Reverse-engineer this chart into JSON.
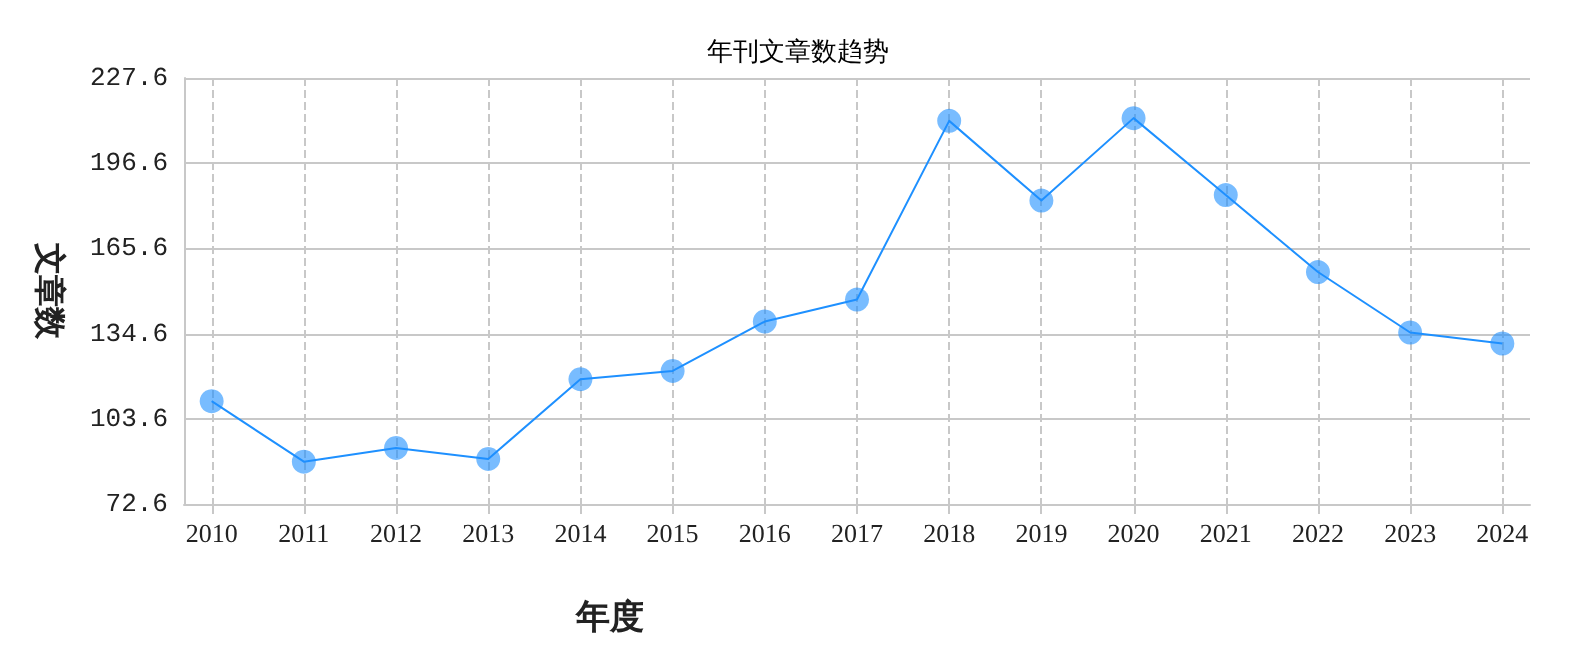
{
  "chart_data": {
    "type": "line",
    "title": "年刊文章数趋势",
    "xlabel": "年度",
    "ylabel": "文章数",
    "x": [
      2010,
      2011,
      2012,
      2013,
      2014,
      2015,
      2016,
      2017,
      2018,
      2019,
      2020,
      2021,
      2022,
      2023,
      2024
    ],
    "series": [
      {
        "color": "#1e90ff",
        "values": [
          110,
          88,
          93,
          89,
          118,
          121,
          139,
          147,
          212,
          183,
          213,
          185,
          157,
          135,
          131
        ]
      }
    ],
    "xlim": [
      2009.7,
      2024.3
    ],
    "xticks": [
      2010,
      2011,
      2012,
      2013,
      2014,
      2015,
      2016,
      2017,
      2018,
      2019,
      2020,
      2021,
      2022,
      2023,
      2024
    ],
    "ylim": [
      72.6,
      227.6
    ],
    "yticks": [
      72.6,
      103.6,
      134.6,
      165.6,
      196.6,
      227.6
    ],
    "grid": true,
    "marker": "circle",
    "line_style": "solid"
  }
}
